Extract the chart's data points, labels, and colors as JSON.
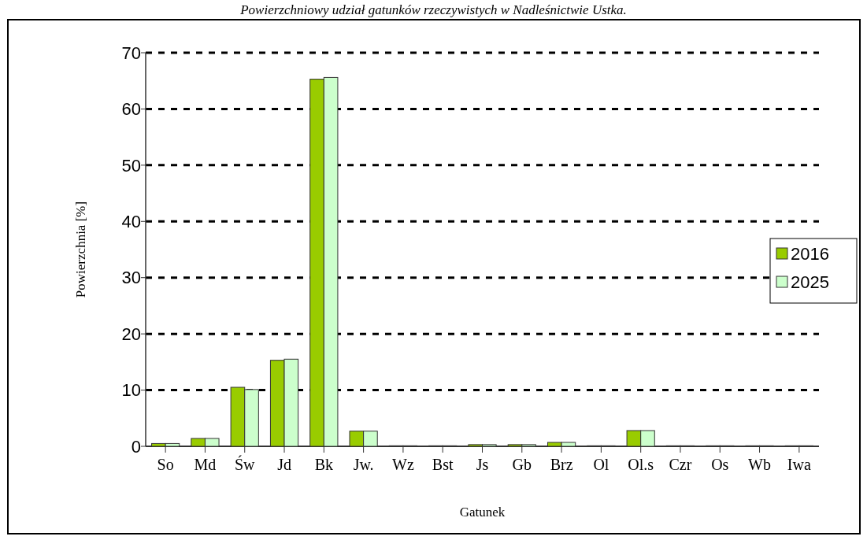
{
  "chart_data": {
    "type": "bar",
    "title": "Powierzchniowy udział gatunków rzeczywistych w Nadleśnictwie Ustka.",
    "xlabel": "Gatunek",
    "ylabel": "Powierzchnia [%]",
    "categories": [
      "So",
      "Md",
      "Św",
      "Jd",
      "Bk",
      "Jw.",
      "Wz",
      "Bst",
      "Js",
      "Gb",
      "Brz",
      "Ol",
      "Ol.s",
      "Czr",
      "Os",
      "Wb",
      "Iwa"
    ],
    "series": [
      {
        "name": "2016",
        "color": "#99cc00",
        "values": [
          0.5,
          1.4,
          10.5,
          15.3,
          65.3,
          2.7,
          0.1,
          0.1,
          0.3,
          0.3,
          0.7,
          0.1,
          2.8,
          0.1,
          0.1,
          0.1,
          0.1
        ]
      },
      {
        "name": "2025",
        "color": "#ccffcc",
        "values": [
          0.5,
          1.4,
          10.1,
          15.5,
          65.6,
          2.7,
          0.1,
          0.1,
          0.3,
          0.3,
          0.7,
          0.1,
          2.8,
          0.1,
          0.1,
          0.1,
          0.1
        ]
      }
    ],
    "ylim": [
      0,
      70
    ],
    "yticks": [
      0,
      10,
      20,
      30,
      40,
      50,
      60,
      70
    ],
    "grid": "y",
    "legend": "right"
  }
}
